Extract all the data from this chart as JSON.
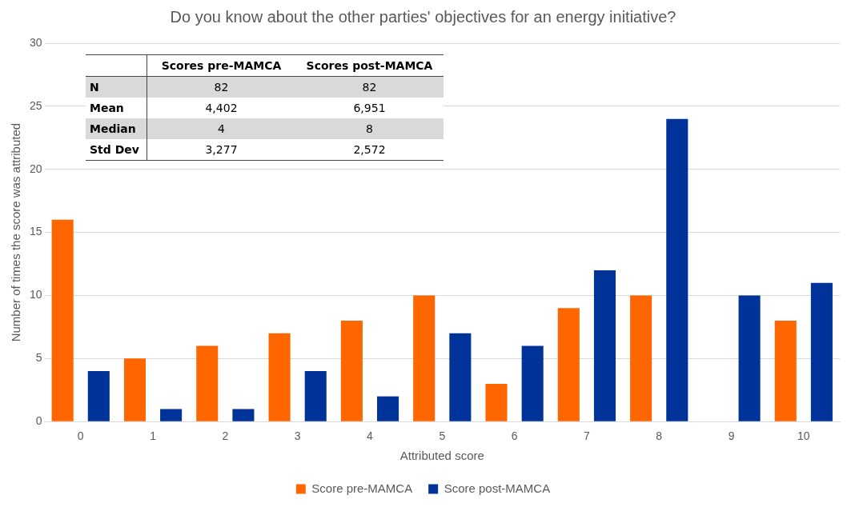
{
  "chart_data": {
    "type": "bar",
    "title": "Do you know about the other parties' objectives for an energy initiative?",
    "xlabel": "Attributed score",
    "ylabel": "Number of times the score was attributed",
    "categories": [
      "0",
      "1",
      "2",
      "3",
      "4",
      "5",
      "6",
      "7",
      "8",
      "9",
      "10"
    ],
    "series": [
      {
        "name": "Score pre-MAMCA",
        "color": "#ff6600",
        "values": [
          16,
          5,
          6,
          7,
          8,
          10,
          3,
          9,
          10,
          0,
          8
        ]
      },
      {
        "name": "Score post-MAMCA",
        "color": "#003399",
        "values": [
          4,
          1,
          1,
          4,
          2,
          7,
          6,
          12,
          24,
          10,
          11
        ]
      }
    ],
    "ylim": [
      0,
      30
    ],
    "yticks": [
      0,
      5,
      10,
      15,
      20,
      25,
      30
    ],
    "grid": "y",
    "legend": "bottom",
    "annotations": [
      "Scores pre-MAMCA",
      "Scores post-MAMCA",
      "N",
      "82",
      "82",
      "Mean",
      "4,402",
      "6,951",
      "Median",
      "4",
      "8",
      "Std Dev",
      "3,277",
      "2,572"
    ]
  }
}
